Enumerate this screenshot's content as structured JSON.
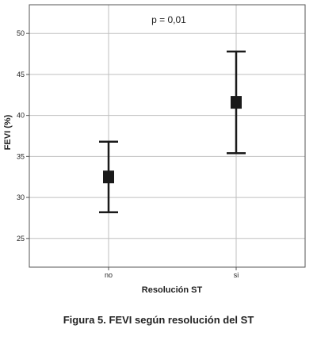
{
  "chart_data": {
    "type": "errorbar",
    "categories": [
      "no",
      "si"
    ],
    "means": [
      32.5,
      41.6
    ],
    "ci_low": [
      28.2,
      35.4
    ],
    "ci_high": [
      36.8,
      47.8
    ],
    "xlabel": "Resolución ST",
    "ylabel": "FEVI (%)",
    "ylim": [
      21.5,
      53.5
    ],
    "yticks": [
      25,
      30,
      35,
      40,
      45,
      50
    ],
    "annotation": "p = 0,01",
    "grid": true,
    "colors": {
      "marker": "#1a1a1a",
      "grid": "#bfbfbf",
      "axis": "#555555"
    }
  },
  "caption": "Figura 5. FEVI según resolución del ST"
}
